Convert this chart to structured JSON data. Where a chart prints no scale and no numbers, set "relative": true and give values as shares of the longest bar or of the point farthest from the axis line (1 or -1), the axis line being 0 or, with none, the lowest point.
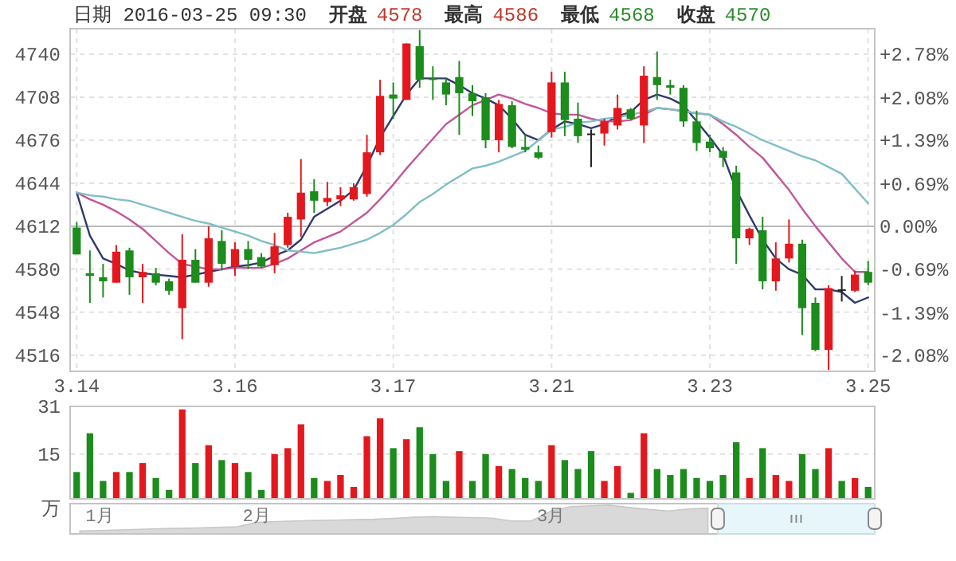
{
  "chart_data": [
    {
      "type": "candlestick",
      "title": "日期 2016-03-25 09:30",
      "annotations": [
        "开盘 4578",
        "最高 4586",
        "最低 4568",
        "收盘 4570"
      ],
      "categories": [
        "3.14",
        null,
        null,
        null,
        null,
        null,
        null,
        null,
        null,
        null,
        null,
        null,
        "3.16",
        null,
        null,
        null,
        null,
        null,
        null,
        null,
        null,
        null,
        null,
        null,
        "3.17",
        null,
        null,
        null,
        null,
        null,
        null,
        null,
        null,
        null,
        null,
        null,
        "3.21",
        null,
        null,
        null,
        null,
        null,
        null,
        null,
        null,
        null,
        null,
        null,
        "3.23",
        null,
        null,
        null,
        null,
        null,
        null,
        null,
        null,
        null,
        null,
        null,
        "3.25"
      ],
      "ohlc": [
        [
          4611,
          4615,
          4591,
          4591
        ],
        [
          4577,
          4594,
          4555,
          4575
        ],
        [
          4574,
          4584,
          4559,
          4571
        ],
        [
          4570,
          4598,
          4570,
          4593
        ],
        [
          4594,
          4596,
          4561,
          4574
        ],
        [
          4574,
          4584,
          4555,
          4578
        ],
        [
          4577,
          4581,
          4568,
          4570
        ],
        [
          4571,
          4573,
          4561,
          4564
        ],
        [
          4551,
          4606,
          4528,
          4587
        ],
        [
          4587,
          4595,
          4570,
          4570
        ],
        [
          4570,
          4612,
          4567,
          4603
        ],
        [
          4601,
          4609,
          4579,
          4584
        ],
        [
          4582,
          4600,
          4575,
          4595
        ],
        [
          4595,
          4601,
          4580,
          4587
        ],
        [
          4589,
          4592,
          4581,
          4582
        ],
        [
          4583,
          4607,
          4577,
          4597
        ],
        [
          4598,
          4622,
          4596,
          4619
        ],
        [
          4617,
          4662,
          4604,
          4637
        ],
        [
          4638,
          4647,
          4622,
          4631
        ],
        [
          4630,
          4645,
          4627,
          4633
        ],
        [
          4632,
          4641,
          4627,
          4635
        ],
        [
          4632,
          4644,
          4631,
          4641
        ],
        [
          4636,
          4680,
          4634,
          4667
        ],
        [
          4667,
          4721,
          4665,
          4709
        ],
        [
          4710,
          4719,
          4692,
          4707
        ],
        [
          4706,
          4748,
          4706,
          4748
        ],
        [
          4746,
          4758,
          4715,
          4721
        ],
        [
          4722,
          4731,
          4706,
          4721
        ],
        [
          4719,
          4722,
          4702,
          4710
        ],
        [
          4723,
          4735,
          4680,
          4711
        ],
        [
          4711,
          4717,
          4694,
          4705
        ],
        [
          4708,
          4711,
          4670,
          4676
        ],
        [
          4676,
          4706,
          4667,
          4703
        ],
        [
          4702,
          4705,
          4670,
          4671
        ],
        [
          4671,
          4680,
          4667,
          4669
        ],
        [
          4667,
          4672,
          4662,
          4663
        ],
        [
          4682,
          4727,
          4678,
          4719
        ],
        [
          4719,
          4727,
          4679,
          4691
        ],
        [
          4692,
          4704,
          4674,
          4679
        ],
        [
          4681,
          4684,
          4656,
          4681
        ],
        [
          4681,
          4692,
          4672,
          4690
        ],
        [
          4687,
          4710,
          4684,
          4700
        ],
        [
          4699,
          4700,
          4691,
          4692
        ],
        [
          4687,
          4731,
          4674,
          4724
        ],
        [
          4723,
          4742,
          4706,
          4717
        ],
        [
          4717,
          4721,
          4710,
          4715
        ],
        [
          4715,
          4717,
          4686,
          4690
        ],
        [
          4690,
          4698,
          4668,
          4674
        ],
        [
          4675,
          4680,
          4667,
          4670
        ],
        [
          4668,
          4671,
          4656,
          4663
        ],
        [
          4652,
          4657,
          4584,
          4603
        ],
        [
          4603,
          4611,
          4598,
          4610
        ],
        [
          4609,
          4619,
          4565,
          4571
        ],
        [
          4571,
          4600,
          4564,
          4588
        ],
        [
          4588,
          4617,
          4585,
          4599
        ],
        [
          4599,
          4602,
          4531,
          4551
        ],
        [
          4555,
          4559,
          4519,
          4520
        ],
        [
          4520,
          4568,
          4505,
          4566
        ],
        [
          4565,
          4575,
          4556,
          4565
        ],
        [
          4564,
          4579,
          4563,
          4576
        ],
        [
          4578,
          4586,
          4568,
          4570
        ]
      ],
      "colors": [
        "#1c8c1c",
        "#1c8c1c",
        "#1c8c1c",
        "#e3181e",
        "#1c8c1c",
        "#e3181e",
        "#1c8c1c",
        "#1c8c1c",
        "#e3181e",
        "#1c8c1c",
        "#e3181e",
        "#1c8c1c",
        "#e3181e",
        "#1c8c1c",
        "#1c8c1c",
        "#e3181e",
        "#e3181e",
        "#e3181e",
        "#1c8c1c",
        "#e3181e",
        "#e3181e",
        "#e3181e",
        "#e3181e",
        "#e3181e",
        "#1c8c1c",
        "#e3181e",
        "#1c8c1c",
        "#1c8c1c",
        "#1c8c1c",
        "#1c8c1c",
        "#1c8c1c",
        "#1c8c1c",
        "#e3181e",
        "#1c8c1c",
        "#1c8c1c",
        "#1c8c1c",
        "#e3181e",
        "#1c8c1c",
        "#1c8c1c",
        "#222222",
        "#e3181e",
        "#e3181e",
        "#1c8c1c",
        "#e3181e",
        "#1c8c1c",
        "#1c8c1c",
        "#1c8c1c",
        "#1c8c1c",
        "#1c8c1c",
        "#1c8c1c",
        "#1c8c1c",
        "#e3181e",
        "#1c8c1c",
        "#e3181e",
        "#e3181e",
        "#1c8c1c",
        "#1c8c1c",
        "#e3181e",
        "#222222",
        "#e3181e",
        "#1c8c1c"
      ],
      "series": [
        {
          "type": "line",
          "color": "#2f3b6b",
          "values": [
            4637,
            4605,
            4588,
            4584,
            4579,
            4577,
            4576,
            4575,
            4574,
            4576,
            4578,
            4580,
            4582,
            4583,
            4585,
            4590,
            4594,
            4602,
            4619,
            4625,
            4631,
            4639,
            4657,
            4678,
            4694,
            4710,
            4722,
            4722,
            4722,
            4717,
            4711,
            4707,
            4702,
            4692,
            4680,
            4676,
            4684,
            4690,
            4688,
            4685,
            4688,
            4694,
            4697,
            4706,
            4710,
            4707,
            4702,
            4690,
            4678,
            4665,
            4639,
            4620,
            4602,
            4588,
            4580,
            4576,
            4565,
            4565,
            4563,
            4555,
            4559
          ]
        },
        {
          "type": "line",
          "color": "#c2569c",
          "values": [
            4637,
            4632,
            4628,
            4623,
            4617,
            4610,
            4601,
            4592,
            4584,
            4582,
            4580,
            4580,
            4581,
            4581,
            4581,
            4584,
            4588,
            4594,
            4600,
            4604,
            4608,
            4615,
            4622,
            4632,
            4643,
            4655,
            4666,
            4677,
            4688,
            4695,
            4702,
            4706,
            4710,
            4707,
            4703,
            4700,
            4696,
            4695,
            4695,
            4692,
            4690,
            4690,
            4691,
            4695,
            4700,
            4699,
            null,
            4696,
            4695,
            4688,
            4680,
            4671,
            4663,
            4651,
            4639,
            4625,
            4612,
            4600,
            4588,
            4578,
            4578
          ]
        },
        {
          "type": "line",
          "color": "#7fbfc6",
          "values": [
            4637,
            4635,
            4634,
            4632,
            4631,
            4628,
            4625,
            4622,
            4619,
            4616,
            4614,
            4611,
            4608,
            4605,
            4601,
            4598,
            4594,
            4593,
            4592,
            4594,
            4596,
            4599,
            4602,
            4607,
            4613,
            4621,
            4630,
            4636,
            4643,
            4649,
            4655,
            4657,
            4660,
            4664,
            4668,
            4676,
            4684,
            4686,
            4689,
            4690,
            4692,
            4693,
            4695,
            4697,
            4700,
            4699,
            4698,
            4696,
            4695,
            4690,
            4686,
            4681,
            4676,
            4672,
            4668,
            4664,
            4661,
            4656,
            4651,
            4640,
            4629
          ]
        }
      ],
      "ylim": [
        4504,
        4759
      ],
      "yticks": [
        4516,
        4548,
        4580,
        4612,
        4644,
        4676,
        4708,
        4740
      ],
      "y2lim": [
        -2.34,
        3.19
      ],
      "y2ticks": [
        {
          "value": 2.78,
          "label": "+2.78%"
        },
        {
          "value": 2.08,
          "label": "+2.08%"
        },
        {
          "value": 1.39,
          "label": "+1.39%"
        },
        {
          "value": 0.69,
          "label": "+0.69%"
        },
        {
          "value": 0,
          "label": "0.00%"
        },
        {
          "value": -0.69,
          "label": "-0.69%"
        },
        {
          "value": -1.39,
          "label": "-1.39%"
        },
        {
          "value": -2.08,
          "label": "-2.08%"
        }
      ],
      "ref_lines": [
        {
          "axis": "y2",
          "value": 0,
          "color": "#bbbbbb"
        }
      ],
      "grid": true
    },
    {
      "type": "bar",
      "ylabel": "万",
      "categories": [
        null,
        null,
        null,
        null,
        null,
        null,
        null,
        null,
        null,
        null,
        null,
        null,
        null,
        null,
        null,
        null,
        null,
        null,
        null,
        null,
        null,
        null,
        null,
        null,
        null,
        null,
        null,
        null,
        null,
        null,
        null,
        null,
        null,
        null,
        null,
        null,
        null,
        null,
        null,
        null,
        null,
        null,
        null,
        null,
        null,
        null,
        null,
        null,
        null,
        null,
        null,
        null,
        null,
        null,
        null,
        null,
        null,
        null,
        null,
        null,
        null
      ],
      "values": [
        9,
        22,
        6,
        9,
        9,
        12,
        7,
        3,
        30,
        12,
        18,
        13,
        12,
        9,
        3,
        15,
        17,
        25,
        7,
        6,
        8,
        4,
        21,
        27,
        17,
        20,
        24,
        15,
        6,
        16,
        6,
        15,
        11,
        10,
        7,
        6,
        18,
        13,
        10,
        16,
        6,
        11,
        2,
        22,
        10,
        8,
        10,
        7,
        6,
        8,
        19,
        7,
        17,
        8,
        6,
        15,
        10,
        17,
        6,
        7,
        4
      ],
      "colors": [
        "#1c8c1c",
        "#1c8c1c",
        "#1c8c1c",
        "#e3181e",
        "#1c8c1c",
        "#e3181e",
        "#1c8c1c",
        "#1c8c1c",
        "#e3181e",
        "#1c8c1c",
        "#e3181e",
        "#1c8c1c",
        "#e3181e",
        "#1c8c1c",
        "#1c8c1c",
        "#e3181e",
        "#e3181e",
        "#e3181e",
        "#1c8c1c",
        "#e3181e",
        "#e3181e",
        "#e3181e",
        "#e3181e",
        "#e3181e",
        "#1c8c1c",
        "#e3181e",
        "#1c8c1c",
        "#1c8c1c",
        "#1c8c1c",
        "#e3181e",
        "#1c8c1c",
        "#1c8c1c",
        "#e3181e",
        "#1c8c1c",
        "#1c8c1c",
        "#1c8c1c",
        "#e3181e",
        "#1c8c1c",
        "#1c8c1c",
        "#1c8c1c",
        "#e3181e",
        "#e3181e",
        "#1c8c1c",
        "#e3181e",
        "#1c8c1c",
        "#1c8c1c",
        "#1c8c1c",
        "#1c8c1c",
        "#1c8c1c",
        "#1c8c1c",
        "#1c8c1c",
        "#e3181e",
        "#1c8c1c",
        "#e3181e",
        "#e3181e",
        "#1c8c1c",
        "#1c8c1c",
        "#e3181e",
        "#1c8c1c",
        "#e3181e",
        "#1c8c1c"
      ],
      "ylim": [
        0,
        31
      ],
      "yticks": [
        15,
        31
      ],
      "tick_labels": "y",
      "grid": "y"
    },
    {
      "type": "area",
      "relative": true,
      "color": "#d9d9d9",
      "categories": [
        null,
        "1月",
        null,
        null,
        null,
        null,
        null,
        null,
        null,
        "2月",
        null,
        null,
        null,
        null,
        null,
        null,
        null,
        null,
        null,
        null,
        null,
        null,
        null,
        null,
        "3月",
        null,
        null,
        null,
        null,
        null,
        null,
        null,
        null,
        null,
        null,
        null,
        null,
        null,
        null,
        null,
        null
      ],
      "values": [
        0.1,
        0.12,
        0.14,
        0.16,
        0.18,
        0.19,
        0.21,
        0.23,
        0.25,
        0.4,
        0.43,
        0.45,
        0.47,
        0.48,
        0.5,
        0.51,
        0.54,
        0.58,
        0.6,
        0.58,
        0.57,
        0.55,
        0.45,
        0.45,
        0.8,
        0.95,
        0.98,
        1.0,
        0.92,
        0.85,
        0.8,
        0.87,
        0.9,
        null,
        null,
        null,
        null,
        null,
        null,
        null,
        null
      ],
      "tick_labels": "x"
    }
  ]
}
